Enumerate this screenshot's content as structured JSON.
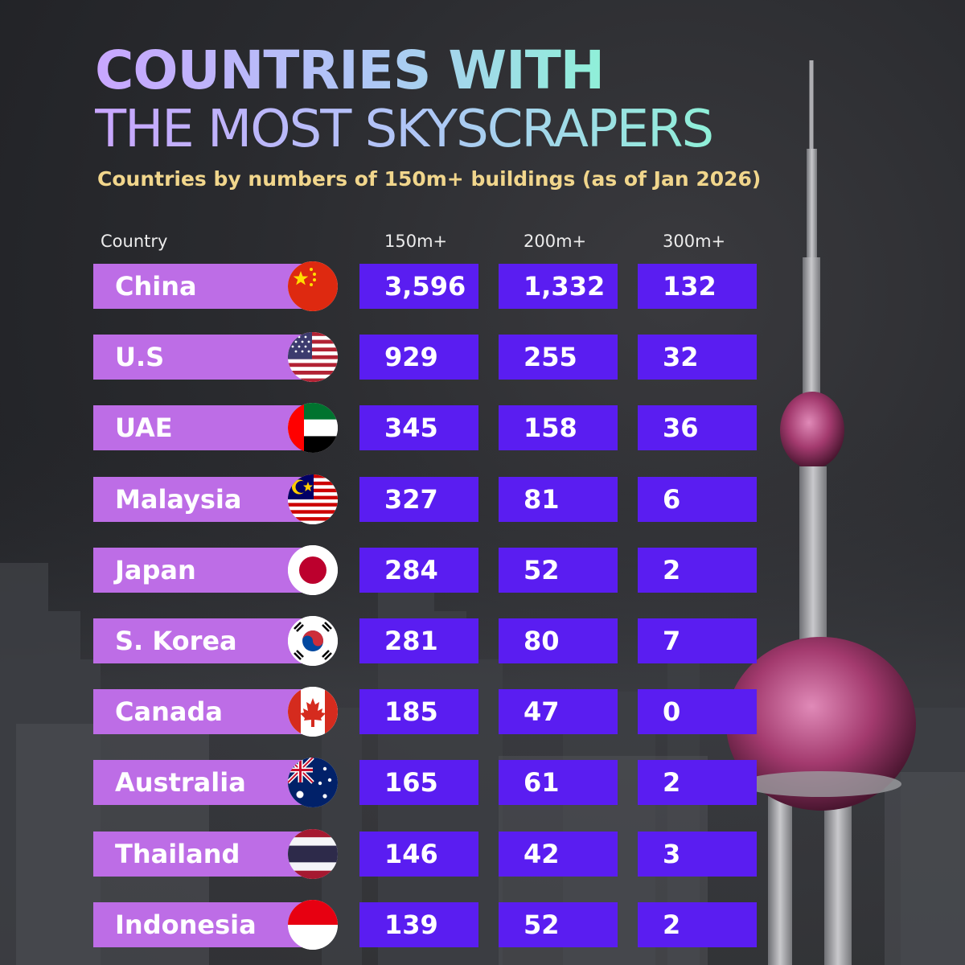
{
  "title_line1": "COUNTRIES WITH",
  "title_line2": "THE MOST SKYSCRAPERS",
  "subtitle": "Countries by numbers of 150m+ buildings (as of Jan 2026)",
  "chart_data": {
    "type": "table",
    "title": "COUNTRIES WITH THE MOST SKYSCRAPERS",
    "subtitle": "Countries by numbers of 150m+ buildings (as of Jan 2026)",
    "columns": [
      "Country",
      "150m+",
      "200m+",
      "300m+"
    ],
    "rows": [
      {
        "country": "China",
        "flag": "china-flag-icon",
        "v150": "3,596",
        "v200": "1,332",
        "v300": "132"
      },
      {
        "country": "U.S",
        "flag": "usa-flag-icon",
        "v150": "929",
        "v200": "255",
        "v300": "32"
      },
      {
        "country": "UAE",
        "flag": "uae-flag-icon",
        "v150": "345",
        "v200": "158",
        "v300": "36"
      },
      {
        "country": "Malaysia",
        "flag": "malaysia-flag-icon",
        "v150": "327",
        "v200": "81",
        "v300": "6"
      },
      {
        "country": "Japan",
        "flag": "japan-flag-icon",
        "v150": "284",
        "v200": "52",
        "v300": "2"
      },
      {
        "country": "S. Korea",
        "flag": "south-korea-flag-icon",
        "v150": "281",
        "v200": "80",
        "v300": "7"
      },
      {
        "country": "Canada",
        "flag": "canada-flag-icon",
        "v150": "185",
        "v200": "47",
        "v300": "0"
      },
      {
        "country": "Australia",
        "flag": "australia-flag-icon",
        "v150": "165",
        "v200": "61",
        "v300": "2"
      },
      {
        "country": "Thailand",
        "flag": "thailand-flag-icon",
        "v150": "146",
        "v200": "42",
        "v300": "3"
      },
      {
        "country": "Indonesia",
        "flag": "indonesia-flag-icon",
        "v150": "139",
        "v200": "52",
        "v300": "2"
      }
    ]
  },
  "colors": {
    "country_cell": "#bd6de6",
    "value_cell": "#5a1df1",
    "subtitle": "#f1d68c",
    "title_gradient_start": "#c9a6ff",
    "title_gradient_end": "#8ff0d8"
  },
  "background_icon": "tv-tower-over-city-skyline-icon"
}
